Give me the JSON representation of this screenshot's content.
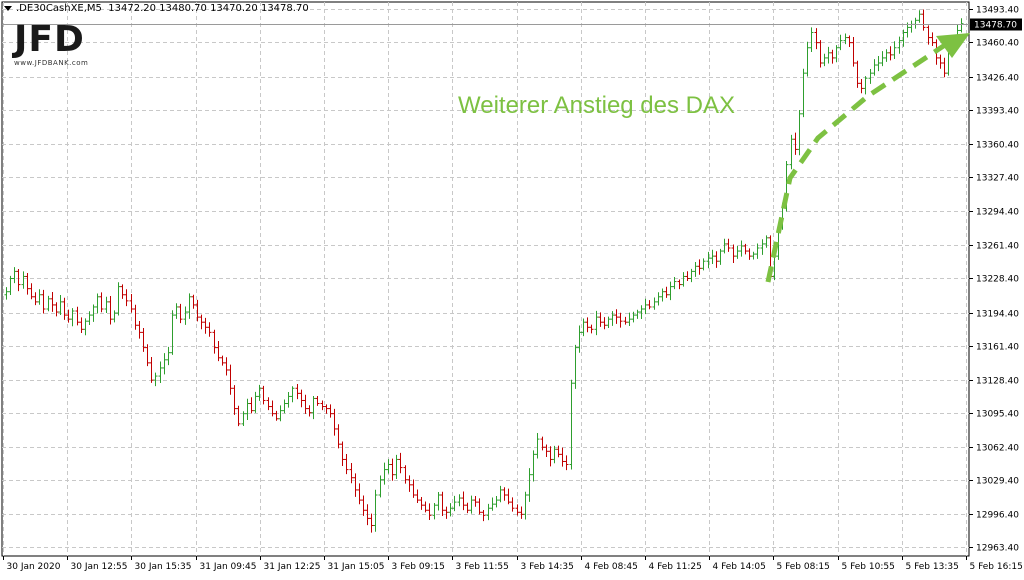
{
  "header": {
    "symbol": ".DE30CashXE,M5",
    "ohlc": "13472.20 13480.70 13470.20 13478.70"
  },
  "logo": {
    "text": "JFD",
    "subtext": "www.JFDBANK.com"
  },
  "annotation": {
    "text": "Weiterer Anstieg des DAX",
    "color": "#7dc142"
  },
  "colors": {
    "bar_up": "#2e9e2e",
    "bar_down": "#c00000",
    "grid": "#c8c8c8",
    "axis": "#000000",
    "price_tag": "#000000",
    "arrow": "#7dc142"
  },
  "chart_data": {
    "type": "bar",
    "title": "",
    "xlabel": "",
    "ylabel": "",
    "ylim": [
      12955,
      13500
    ],
    "current_price": "13478.70",
    "y_ticks": [
      "13493.40",
      "13460.40",
      "13426.40",
      "13393.40",
      "13360.40",
      "13327.40",
      "13294.40",
      "13261.40",
      "13228.40",
      "13194.40",
      "13161.40",
      "13128.40",
      "13095.40",
      "13062.40",
      "13029.40",
      "12996.40",
      "12963.40"
    ],
    "x_ticks": [
      "30 Jan 2020",
      "30 Jan 12:55",
      "30 Jan 15:35",
      "31 Jan 09:45",
      "31 Jan 12:25",
      "31 Jan 15:05",
      "3 Feb 09:15",
      "3 Feb 11:55",
      "3 Feb 14:35",
      "4 Feb 08:45",
      "4 Feb 11:25",
      "4 Feb 14:05",
      "5 Feb 08:15",
      "5 Feb 10:55",
      "5 Feb 13:35",
      "5 Feb 16:15"
    ],
    "series": [
      {
        "close": [
          13215,
          13228,
          13235,
          13222,
          13230,
          13218,
          13210,
          13205,
          13212,
          13198,
          13208,
          13202,
          13195,
          13205,
          13192,
          13188,
          13196,
          13185,
          13178,
          13186,
          13192,
          13200,
          13210,
          13198,
          13205,
          13188,
          13194,
          13220,
          13212,
          13206,
          13198,
          13182,
          13175,
          13160,
          13145,
          13128,
          13132,
          13140,
          13148,
          13155,
          13192,
          13200,
          13188,
          13195,
          13210,
          13202,
          13190,
          13185,
          13180,
          13175,
          13160,
          13150,
          13145,
          13138,
          13120,
          13100,
          13085,
          13095,
          13105,
          13098,
          13112,
          13120,
          13108,
          13102,
          13095,
          13090,
          13098,
          13105,
          13112,
          13120,
          13115,
          13108,
          13100,
          13096,
          13110,
          13105,
          13102,
          13100,
          13095,
          13080,
          13065,
          13050,
          13040,
          13032,
          13020,
          13010,
          13000,
          12992,
          12985,
          13015,
          13030,
          13040,
          13045,
          13035,
          13050,
          13042,
          13030,
          13025,
          13015,
          13010,
          13005,
          13000,
          12995,
          13005,
          13015,
          13000,
          12998,
          13002,
          13008,
          13012,
          13005,
          13000,
          13010,
          13008,
          12998,
          12995,
          13002,
          13006,
          13010,
          13020,
          13015,
          13008,
          13002,
          12998,
          12996,
          13015,
          13035,
          13055,
          13070,
          13062,
          13058,
          13050,
          13060,
          13055,
          13048,
          13045,
          13125,
          13160,
          13175,
          13185,
          13180,
          13178,
          13190,
          13185,
          13182,
          13188,
          13192,
          13190,
          13186,
          13185,
          13188,
          13192,
          13195,
          13198,
          13202,
          13200,
          13205,
          13210,
          13215,
          13212,
          13220,
          13225,
          13222,
          13230,
          13228,
          13235,
          13240,
          13238,
          13245,
          13248,
          13250,
          13245,
          13255,
          13262,
          13258,
          13250,
          13255,
          13260,
          13255,
          13250,
          13252,
          13258,
          13262,
          13268,
          13230,
          13250,
          13280,
          13300,
          13340,
          13365,
          13355,
          13390,
          13430,
          13455,
          13470,
          13460,
          13440,
          13445,
          13450,
          13445,
          13455,
          13462,
          13465,
          13460,
          13440,
          13420,
          13415,
          13425,
          13430,
          13438,
          13440,
          13445,
          13450,
          13448,
          13455,
          13462,
          13470,
          13475,
          13478,
          13482,
          13488,
          13475,
          13465,
          13460,
          13445,
          13440,
          13430,
          13455,
          13465,
          13472,
          13478.7
        ]
      }
    ]
  }
}
